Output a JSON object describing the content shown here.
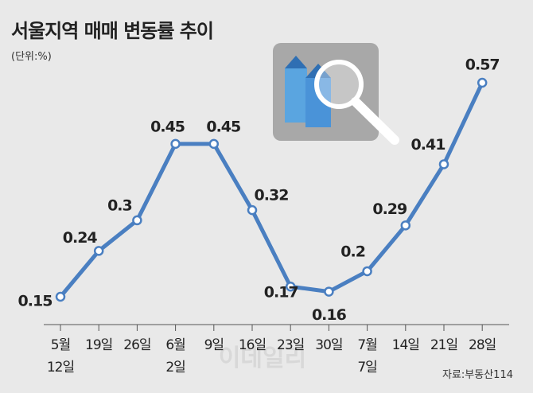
{
  "chart_data": {
    "type": "line",
    "title": "서울지역 매매 변동률 추이",
    "subtitle": "(단위:%)",
    "source": "자료:부동산114",
    "watermark": "이데일리",
    "categories": [
      "5월\n12일",
      "19일",
      "26일",
      "6월\n2일",
      "9일",
      "16일",
      "23일",
      "30일",
      "7월\n7일",
      "14일",
      "21일",
      "28일"
    ],
    "series": [
      {
        "color": "#4a7fc1",
        "values": [
          0.15,
          0.24,
          0.3,
          0.45,
          0.45,
          0.32,
          0.17,
          0.16,
          0.2,
          0.29,
          0.41,
          0.57
        ]
      }
    ]
  }
}
